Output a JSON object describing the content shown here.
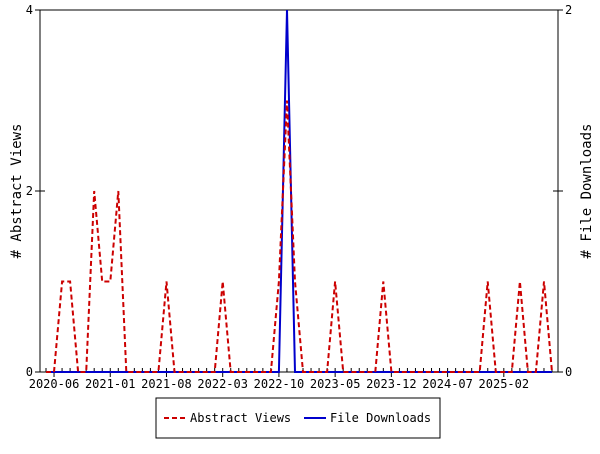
{
  "chart_data": {
    "type": "line",
    "title": "",
    "ylabel_left": "# Abstract Views",
    "ylabel_right": "# File Downloads",
    "ylim_left": [
      0,
      4
    ],
    "ylim_right": [
      0,
      2
    ],
    "yticks_left": [
      "0",
      "2",
      "4"
    ],
    "yticks_right": [
      "0",
      "1",
      "2"
    ],
    "x_months": [
      "2020-05",
      "2020-06",
      "2020-07",
      "2020-08",
      "2020-09",
      "2020-10",
      "2020-11",
      "2020-12",
      "2021-01",
      "2021-02",
      "2021-03",
      "2021-04",
      "2021-05",
      "2021-06",
      "2021-07",
      "2021-08",
      "2021-09",
      "2021-10",
      "2021-11",
      "2021-12",
      "2022-01",
      "2022-02",
      "2022-03",
      "2022-04",
      "2022-05",
      "2022-06",
      "2022-07",
      "2022-08",
      "2022-09",
      "2022-10",
      "2022-11",
      "2022-12",
      "2023-01",
      "2023-02",
      "2023-03",
      "2023-04",
      "2023-05",
      "2023-06",
      "2023-07",
      "2023-08",
      "2023-09",
      "2023-10",
      "2023-11",
      "2023-12",
      "2024-01",
      "2024-02",
      "2024-03",
      "2024-04",
      "2024-05",
      "2024-06",
      "2024-07",
      "2024-08",
      "2024-09",
      "2024-10",
      "2024-11",
      "2024-12",
      "2025-01",
      "2025-02",
      "2025-03",
      "2025-04",
      "2025-05",
      "2025-06",
      "2025-07",
      "2025-08"
    ],
    "x_tick_labels": [
      "2020-06",
      "2021-01",
      "2021-08",
      "2022-03",
      "2022-10",
      "2023-05",
      "2023-12",
      "2024-07",
      "2025-02"
    ],
    "legend_position": "bottom",
    "grid": false,
    "series": [
      {
        "name": "Abstract Views",
        "axis": "left",
        "color": "#cc0000",
        "dash": true,
        "values": [
          0,
          0,
          1,
          1,
          0,
          0,
          2,
          1,
          1,
          2,
          0,
          0,
          0,
          0,
          0,
          1,
          0,
          0,
          0,
          0,
          0,
          0,
          1,
          0,
          0,
          0,
          0,
          0,
          0,
          1,
          3,
          1,
          0,
          0,
          0,
          0,
          1,
          0,
          0,
          0,
          0,
          0,
          1,
          0,
          0,
          0,
          0,
          0,
          0,
          0,
          0,
          0,
          0,
          0,
          0,
          1,
          0,
          0,
          0,
          1,
          0,
          0,
          1,
          0
        ]
      },
      {
        "name": "File Downloads",
        "axis": "right",
        "color": "#0000cc",
        "dash": false,
        "values": [
          0,
          0,
          0,
          0,
          0,
          0,
          0,
          0,
          0,
          0,
          0,
          0,
          0,
          0,
          0,
          0,
          0,
          0,
          0,
          0,
          0,
          0,
          0,
          0,
          0,
          0,
          0,
          0,
          0,
          0,
          2,
          0,
          0,
          0,
          0,
          0,
          0,
          0,
          0,
          0,
          0,
          0,
          0,
          0,
          0,
          0,
          0,
          0,
          0,
          0,
          0,
          0,
          0,
          0,
          0,
          0,
          0,
          0,
          0,
          0,
          0,
          0,
          0,
          0
        ]
      }
    ]
  }
}
